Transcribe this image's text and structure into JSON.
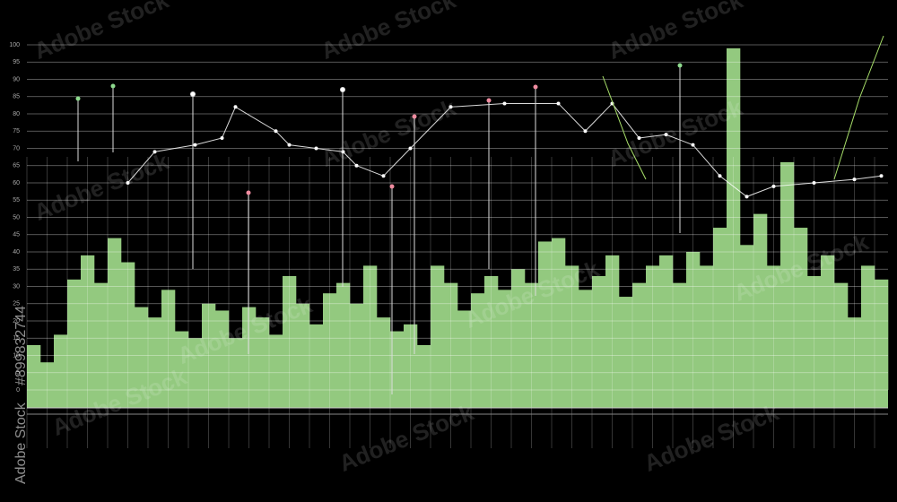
{
  "watermark": {
    "text": "Adobe Stock",
    "id": "#899832744"
  },
  "chart_data": [
    {
      "type": "bar",
      "categories": [
        null,
        null,
        null,
        null,
        null,
        null,
        null,
        null,
        null,
        null,
        null,
        null,
        null,
        null,
        null,
        null,
        null,
        null,
        null,
        null,
        null,
        null,
        null,
        null,
        null,
        null,
        null,
        null,
        null,
        null,
        null,
        null,
        null,
        null,
        null,
        null,
        null,
        null,
        null,
        null,
        null,
        null,
        null,
        null,
        null,
        null,
        null,
        null,
        null,
        null,
        null,
        null,
        null,
        null,
        null,
        null,
        null,
        null,
        null,
        null,
        null,
        null,
        null,
        null
      ],
      "values": [
        13,
        8,
        16,
        32,
        39,
        31,
        44,
        37,
        24,
        21,
        29,
        17,
        15,
        25,
        23,
        15,
        24,
        21,
        16,
        33,
        25,
        19,
        28,
        31,
        25,
        36,
        21,
        17,
        19,
        13,
        36,
        31,
        23,
        28,
        33,
        29,
        35,
        31,
        43,
        44,
        36,
        29,
        33,
        39,
        27,
        31,
        36,
        39,
        31,
        40,
        36,
        47,
        99,
        42,
        51,
        36,
        66,
        47,
        33,
        39,
        31,
        21,
        36,
        32
      ],
      "color": "#93c97f",
      "ylim": [
        0,
        100
      ],
      "yticks": [
        0,
        5,
        10,
        15,
        20,
        25,
        30,
        35,
        40,
        45,
        50,
        55,
        60,
        65,
        70,
        75,
        80,
        85,
        90,
        95,
        100
      ],
      "grid": true
    },
    {
      "type": "line",
      "x": [
        7.5,
        9.5,
        12.5,
        14.5,
        15.5,
        18.5,
        19.5,
        21.5,
        23.5,
        24.5,
        26.5,
        28.5,
        31.5,
        35.5,
        39.5,
        41.5,
        43.5,
        45.5,
        47.5,
        49.5,
        51.5,
        53.5,
        55.5,
        58.5,
        61.5,
        63.5
      ],
      "xlim": [
        0,
        64
      ],
      "values": [
        60,
        69,
        71,
        73,
        82,
        75,
        71,
        70,
        69,
        65,
        62,
        70,
        82,
        83,
        83,
        75,
        83,
        73,
        74,
        71,
        62,
        56,
        59,
        60,
        61,
        62
      ],
      "color": "#ffffff",
      "ylim": [
        0,
        100
      ]
    }
  ]
}
